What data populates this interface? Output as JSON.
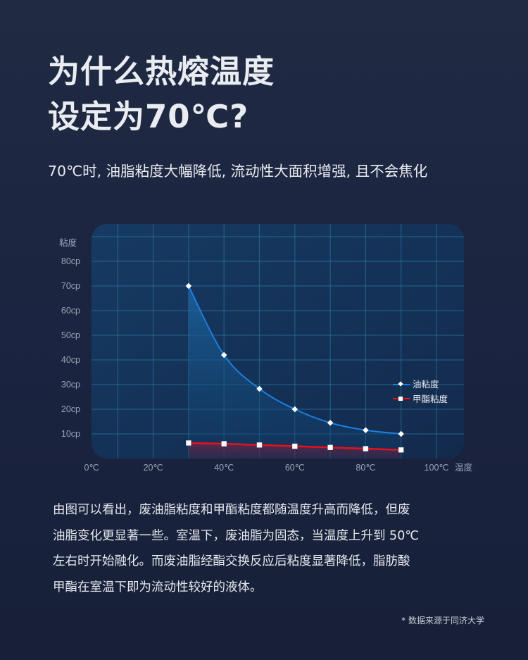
{
  "title": {
    "line1": "为什么热熔温度",
    "line2": "设定为70℃?"
  },
  "subtitle": "70℃时, 油脂粘度大幅降低, 流动性大面积增强, 且不会焦化",
  "body": {
    "lines": [
      "由图可以看出，废油脂粘度和甲酯粘度都随温度升高而降低，但废",
      "油脂变化更显著一些。室温下，废油脂为固态，当温度上升到 50℃",
      "左右时开始融化。而废油脂经酯交换反应后粘度显著降低，脂肪酸",
      "甲酯在室温下即为流动性较好的液体。"
    ]
  },
  "source_note": "* 数据来源于同济大学",
  "chart_data": {
    "type": "line",
    "xlabel": "温度",
    "ylabel": "粘度",
    "x_ticks": [
      "0℃",
      "20℃",
      "40℃",
      "60℃",
      "80℃",
      "100℃"
    ],
    "y_ticks": [
      "10cp",
      "20cp",
      "30cp",
      "40cp",
      "50cp",
      "60cp",
      "70cp",
      "80cp"
    ],
    "xlim": [
      0,
      100
    ],
    "ylim": [
      0,
      90
    ],
    "grid": true,
    "legend_position": "right",
    "x": [
      30,
      40,
      50,
      60,
      70,
      80,
      90
    ],
    "series": [
      {
        "name": "油粘度",
        "values": [
          70,
          42,
          28.3,
          20,
          14.5,
          11.5,
          10
        ],
        "color": "#1a7fe0",
        "marker": "diamond"
      },
      {
        "name": "甲酯粘度",
        "values": [
          6.3,
          6,
          5.5,
          5,
          4.5,
          4,
          3.5
        ],
        "color": "#e8101e",
        "marker": "square"
      }
    ]
  }
}
